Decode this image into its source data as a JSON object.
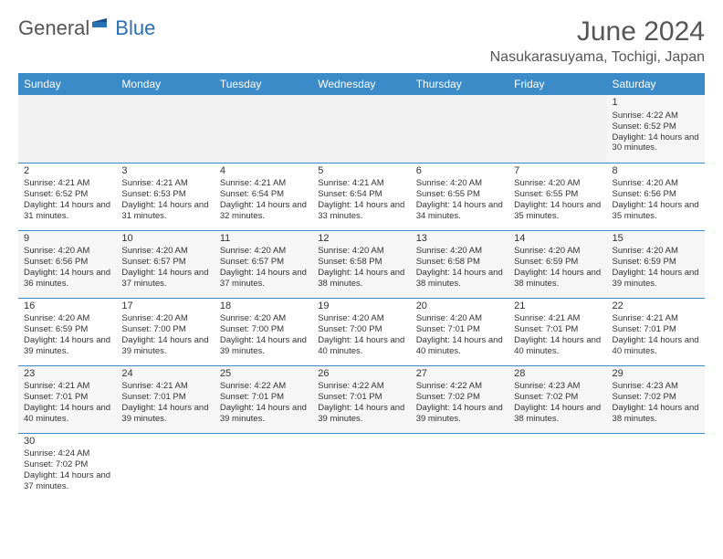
{
  "logo": {
    "part1": "General",
    "part2": "Blue"
  },
  "title": "June 2024",
  "location": "Nasukarasuyama, Tochigi, Japan",
  "colors": {
    "header_bg": "#3b8bc8",
    "header_fg": "#ffffff",
    "row_border": "#3b8bc8",
    "shade": "#f2f2f2",
    "text": "#333333",
    "title_color": "#555555"
  },
  "weekdays": [
    "Sunday",
    "Monday",
    "Tuesday",
    "Wednesday",
    "Thursday",
    "Friday",
    "Saturday"
  ],
  "grid": [
    [
      null,
      null,
      null,
      null,
      null,
      null,
      {
        "d": 1,
        "sr": "4:22 AM",
        "ss": "6:52 PM",
        "dl": "14 hours and 30 minutes."
      }
    ],
    [
      {
        "d": 2,
        "sr": "4:21 AM",
        "ss": "6:52 PM",
        "dl": "14 hours and 31 minutes."
      },
      {
        "d": 3,
        "sr": "4:21 AM",
        "ss": "6:53 PM",
        "dl": "14 hours and 31 minutes."
      },
      {
        "d": 4,
        "sr": "4:21 AM",
        "ss": "6:54 PM",
        "dl": "14 hours and 32 minutes."
      },
      {
        "d": 5,
        "sr": "4:21 AM",
        "ss": "6:54 PM",
        "dl": "14 hours and 33 minutes."
      },
      {
        "d": 6,
        "sr": "4:20 AM",
        "ss": "6:55 PM",
        "dl": "14 hours and 34 minutes."
      },
      {
        "d": 7,
        "sr": "4:20 AM",
        "ss": "6:55 PM",
        "dl": "14 hours and 35 minutes."
      },
      {
        "d": 8,
        "sr": "4:20 AM",
        "ss": "6:56 PM",
        "dl": "14 hours and 35 minutes."
      }
    ],
    [
      {
        "d": 9,
        "sr": "4:20 AM",
        "ss": "6:56 PM",
        "dl": "14 hours and 36 minutes."
      },
      {
        "d": 10,
        "sr": "4:20 AM",
        "ss": "6:57 PM",
        "dl": "14 hours and 37 minutes."
      },
      {
        "d": 11,
        "sr": "4:20 AM",
        "ss": "6:57 PM",
        "dl": "14 hours and 37 minutes."
      },
      {
        "d": 12,
        "sr": "4:20 AM",
        "ss": "6:58 PM",
        "dl": "14 hours and 38 minutes."
      },
      {
        "d": 13,
        "sr": "4:20 AM",
        "ss": "6:58 PM",
        "dl": "14 hours and 38 minutes."
      },
      {
        "d": 14,
        "sr": "4:20 AM",
        "ss": "6:59 PM",
        "dl": "14 hours and 38 minutes."
      },
      {
        "d": 15,
        "sr": "4:20 AM",
        "ss": "6:59 PM",
        "dl": "14 hours and 39 minutes."
      }
    ],
    [
      {
        "d": 16,
        "sr": "4:20 AM",
        "ss": "6:59 PM",
        "dl": "14 hours and 39 minutes."
      },
      {
        "d": 17,
        "sr": "4:20 AM",
        "ss": "7:00 PM",
        "dl": "14 hours and 39 minutes."
      },
      {
        "d": 18,
        "sr": "4:20 AM",
        "ss": "7:00 PM",
        "dl": "14 hours and 39 minutes."
      },
      {
        "d": 19,
        "sr": "4:20 AM",
        "ss": "7:00 PM",
        "dl": "14 hours and 40 minutes."
      },
      {
        "d": 20,
        "sr": "4:20 AM",
        "ss": "7:01 PM",
        "dl": "14 hours and 40 minutes."
      },
      {
        "d": 21,
        "sr": "4:21 AM",
        "ss": "7:01 PM",
        "dl": "14 hours and 40 minutes."
      },
      {
        "d": 22,
        "sr": "4:21 AM",
        "ss": "7:01 PM",
        "dl": "14 hours and 40 minutes."
      }
    ],
    [
      {
        "d": 23,
        "sr": "4:21 AM",
        "ss": "7:01 PM",
        "dl": "14 hours and 40 minutes."
      },
      {
        "d": 24,
        "sr": "4:21 AM",
        "ss": "7:01 PM",
        "dl": "14 hours and 39 minutes."
      },
      {
        "d": 25,
        "sr": "4:22 AM",
        "ss": "7:01 PM",
        "dl": "14 hours and 39 minutes."
      },
      {
        "d": 26,
        "sr": "4:22 AM",
        "ss": "7:01 PM",
        "dl": "14 hours and 39 minutes."
      },
      {
        "d": 27,
        "sr": "4:22 AM",
        "ss": "7:02 PM",
        "dl": "14 hours and 39 minutes."
      },
      {
        "d": 28,
        "sr": "4:23 AM",
        "ss": "7:02 PM",
        "dl": "14 hours and 38 minutes."
      },
      {
        "d": 29,
        "sr": "4:23 AM",
        "ss": "7:02 PM",
        "dl": "14 hours and 38 minutes."
      }
    ],
    [
      {
        "d": 30,
        "sr": "4:24 AM",
        "ss": "7:02 PM",
        "dl": "14 hours and 37 minutes."
      },
      null,
      null,
      null,
      null,
      null,
      null
    ]
  ],
  "labels": {
    "sunrise": "Sunrise:",
    "sunset": "Sunset:",
    "daylight": "Daylight:"
  }
}
